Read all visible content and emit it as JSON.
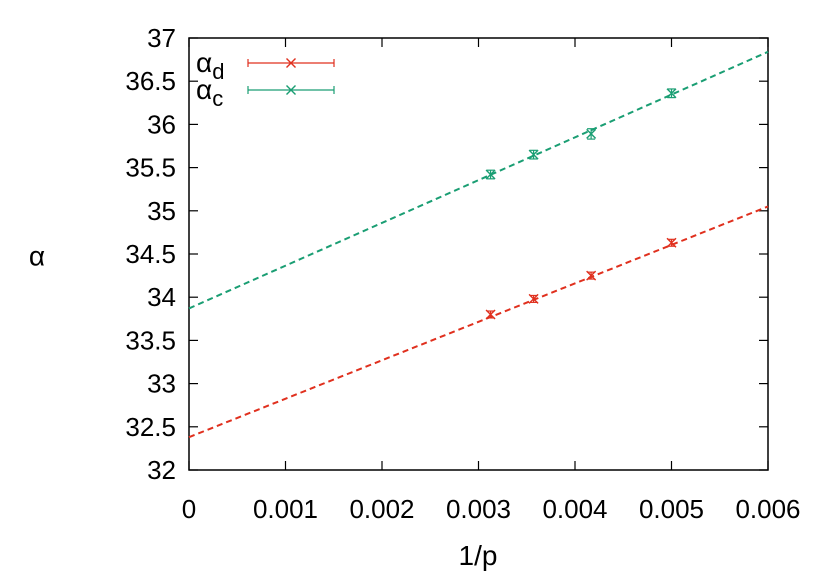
{
  "chart_data": {
    "type": "scatter",
    "xlabel": "1/p",
    "ylabel": "α",
    "xlim": [
      0,
      0.006
    ],
    "ylim": [
      32,
      37
    ],
    "xticks": [
      "0",
      "0.001",
      "0.002",
      "0.003",
      "0.004",
      "0.005",
      "0.006"
    ],
    "yticks": [
      "32",
      "32.5",
      "33",
      "33.5",
      "34",
      "34.5",
      "35",
      "35.5",
      "36",
      "36.5",
      "37"
    ],
    "grid": false,
    "legend_position": "top-left",
    "series": [
      {
        "name": "α",
        "subscript": "d",
        "color": "#e0301e",
        "points": [
          {
            "x": 0.003125,
            "y": 33.8,
            "err": 0.04
          },
          {
            "x": 0.003571,
            "y": 33.98,
            "err": 0.04
          },
          {
            "x": 0.004167,
            "y": 34.25,
            "err": 0.04
          },
          {
            "x": 0.005,
            "y": 34.63,
            "err": 0.04
          }
        ],
        "fit": {
          "intercept": 32.38,
          "slope": 445
        }
      },
      {
        "name": "α",
        "subscript": "c",
        "color": "#1a9e73",
        "points": [
          {
            "x": 0.003125,
            "y": 35.42,
            "err": 0.05
          },
          {
            "x": 0.003571,
            "y": 35.65,
            "err": 0.05
          },
          {
            "x": 0.004167,
            "y": 35.89,
            "err": 0.06
          },
          {
            "x": 0.005,
            "y": 36.36,
            "err": 0.05
          }
        ],
        "fit": {
          "intercept": 33.87,
          "slope": 495
        }
      }
    ]
  }
}
